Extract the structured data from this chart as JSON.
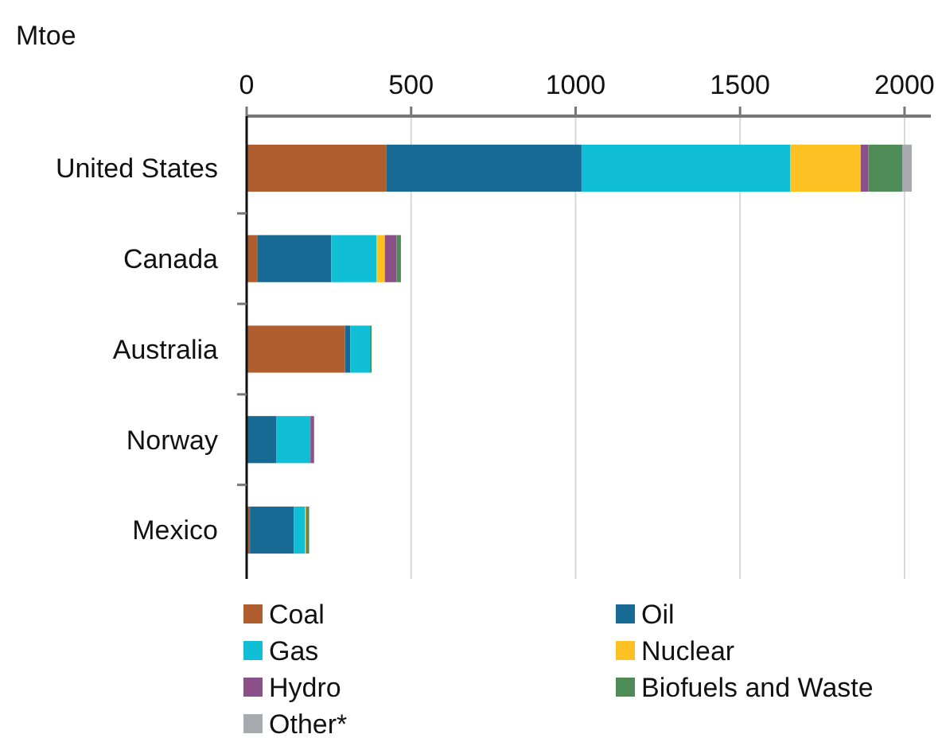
{
  "chart_data": {
    "type": "bar",
    "orientation": "horizontal",
    "stacked": true,
    "xlabel": "Mtoe",
    "categories": [
      "United States",
      "Canada",
      "Australia",
      "Norway",
      "Mexico"
    ],
    "series": [
      {
        "name": "Coal",
        "color": "#b05e2f",
        "values": [
          424,
          32,
          299,
          0,
          10
        ]
      },
      {
        "name": "Oil",
        "color": "#176a93",
        "values": [
          594,
          225,
          16,
          91,
          134
        ]
      },
      {
        "name": "Gas",
        "color": "#10bed5",
        "values": [
          634,
          138,
          60,
          103,
          34
        ]
      },
      {
        "name": "Nuclear",
        "color": "#fdc124",
        "values": [
          215,
          25,
          0,
          0,
          3
        ]
      },
      {
        "name": "Hydro",
        "color": "#8c5089",
        "values": [
          23,
          36,
          2,
          11,
          3
        ]
      },
      {
        "name": "Biofuels and Waste",
        "color": "#4e8c57",
        "values": [
          103,
          13,
          3,
          null,
          6
        ]
      },
      {
        "name": "Other*",
        "color": "#a9aab0",
        "values": [
          29,
          null,
          null,
          0,
          null
        ]
      }
    ],
    "xlim": [
      0,
      2080
    ],
    "xticks": [
      0,
      500,
      1000,
      1500,
      2000
    ],
    "grid": "x",
    "legend": "bottom"
  }
}
